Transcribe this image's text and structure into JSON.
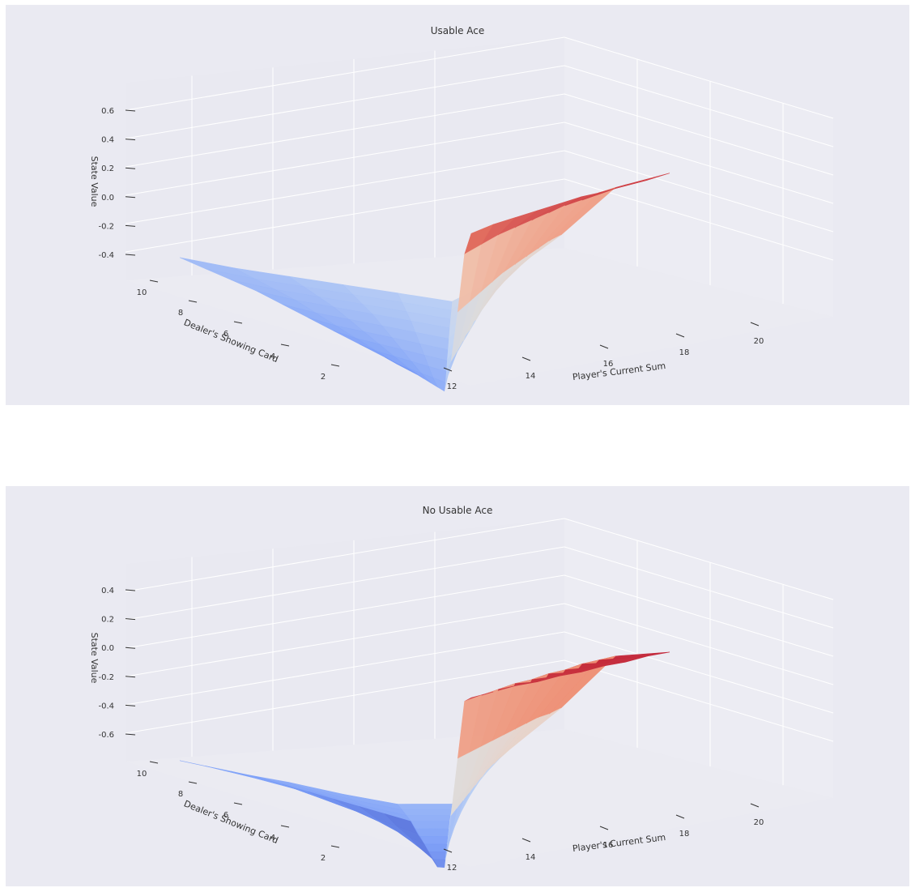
{
  "chart_data": [
    {
      "type": "surface",
      "title": "Usable Ace",
      "xlabel": "Player's Current Sum",
      "ylabel": "Dealer's Showing Card",
      "zlabel": "State Value",
      "x": [
        12,
        13,
        14,
        15,
        16,
        17,
        18,
        19,
        20,
        21
      ],
      "y": [
        1,
        2,
        3,
        4,
        5,
        6,
        7,
        8,
        9,
        10
      ],
      "xticks": [
        "12",
        "14",
        "16",
        "18",
        "20"
      ],
      "yticks": [
        "2",
        "4",
        "6",
        "8",
        "10"
      ],
      "zticks": [
        "-0.4",
        "-0.2",
        "0.0",
        "0.2",
        "0.4",
        "0.6"
      ],
      "zlim": [
        -0.5,
        0.75
      ],
      "colormap": "coolwarm",
      "grid": true,
      "z": [
        [
          -0.38,
          -0.36,
          -0.34,
          -0.32,
          -0.3,
          -0.28,
          -0.1,
          0.18,
          0.5,
          0.64
        ],
        [
          -0.36,
          -0.35,
          -0.33,
          -0.31,
          -0.29,
          -0.27,
          -0.08,
          0.2,
          0.52,
          0.66
        ],
        [
          -0.34,
          -0.33,
          -0.31,
          -0.29,
          -0.27,
          -0.25,
          -0.06,
          0.22,
          0.54,
          0.67
        ],
        [
          -0.32,
          -0.31,
          -0.29,
          -0.27,
          -0.25,
          -0.23,
          -0.04,
          0.24,
          0.55,
          0.68
        ],
        [
          -0.3,
          -0.29,
          -0.27,
          -0.25,
          -0.23,
          -0.21,
          -0.02,
          0.26,
          0.56,
          0.69
        ],
        [
          -0.28,
          -0.27,
          -0.25,
          -0.23,
          -0.21,
          -0.19,
          0.0,
          0.27,
          0.57,
          0.7
        ],
        [
          -0.26,
          -0.25,
          -0.23,
          -0.21,
          -0.19,
          -0.17,
          0.02,
          0.28,
          0.58,
          0.7
        ],
        [
          -0.25,
          -0.24,
          -0.22,
          -0.2,
          -0.18,
          -0.16,
          0.03,
          0.29,
          0.58,
          0.71
        ],
        [
          -0.24,
          -0.23,
          -0.21,
          -0.19,
          -0.17,
          -0.15,
          0.04,
          0.3,
          0.59,
          0.71
        ],
        [
          -0.23,
          -0.22,
          -0.2,
          -0.18,
          -0.16,
          -0.14,
          0.05,
          0.3,
          0.59,
          0.72
        ]
      ]
    },
    {
      "type": "surface",
      "title": "No Usable Ace",
      "xlabel": "Player's Current Sum",
      "ylabel": "Dealer's Showing Card",
      "zlabel": "State Value",
      "x": [
        12,
        13,
        14,
        15,
        16,
        17,
        18,
        19,
        20,
        21
      ],
      "y": [
        1,
        2,
        3,
        4,
        5,
        6,
        7,
        8,
        9,
        10
      ],
      "xticks": [
        "12",
        "14",
        "16",
        "18",
        "20"
      ],
      "yticks": [
        "2",
        "4",
        "6",
        "8",
        "10"
      ],
      "zticks": [
        "-0.6",
        "-0.4",
        "-0.2",
        "0.0",
        "0.2",
        "0.4"
      ],
      "zlim": [
        -0.75,
        0.55
      ],
      "colormap": "coolwarm",
      "grid": true,
      "z": [
        [
          -0.7,
          -0.7,
          -0.69,
          -0.69,
          -0.68,
          -0.62,
          -0.3,
          0.05,
          0.4,
          0.48
        ],
        [
          -0.68,
          -0.68,
          -0.67,
          -0.67,
          -0.66,
          -0.6,
          -0.28,
          0.06,
          0.41,
          0.49
        ],
        [
          -0.66,
          -0.66,
          -0.65,
          -0.65,
          -0.64,
          -0.58,
          -0.26,
          0.07,
          0.42,
          0.5
        ],
        [
          -0.64,
          -0.64,
          -0.63,
          -0.63,
          -0.62,
          -0.56,
          -0.24,
          0.08,
          0.43,
          0.5
        ],
        [
          -0.62,
          -0.62,
          -0.61,
          -0.61,
          -0.6,
          -0.54,
          -0.22,
          0.09,
          0.43,
          0.51
        ],
        [
          -0.6,
          -0.6,
          -0.59,
          -0.59,
          -0.58,
          -0.52,
          -0.2,
          0.1,
          0.44,
          0.51
        ],
        [
          -0.58,
          -0.58,
          -0.57,
          -0.57,
          -0.56,
          -0.5,
          -0.18,
          0.11,
          0.44,
          0.52
        ],
        [
          -0.57,
          -0.57,
          -0.56,
          -0.56,
          -0.55,
          -0.49,
          -0.17,
          0.12,
          0.45,
          0.52
        ],
        [
          -0.56,
          -0.56,
          -0.55,
          -0.55,
          -0.54,
          -0.48,
          -0.16,
          0.12,
          0.45,
          0.53
        ],
        [
          -0.55,
          -0.55,
          -0.54,
          -0.54,
          -0.53,
          -0.47,
          -0.15,
          0.13,
          0.45,
          0.53
        ]
      ]
    }
  ]
}
